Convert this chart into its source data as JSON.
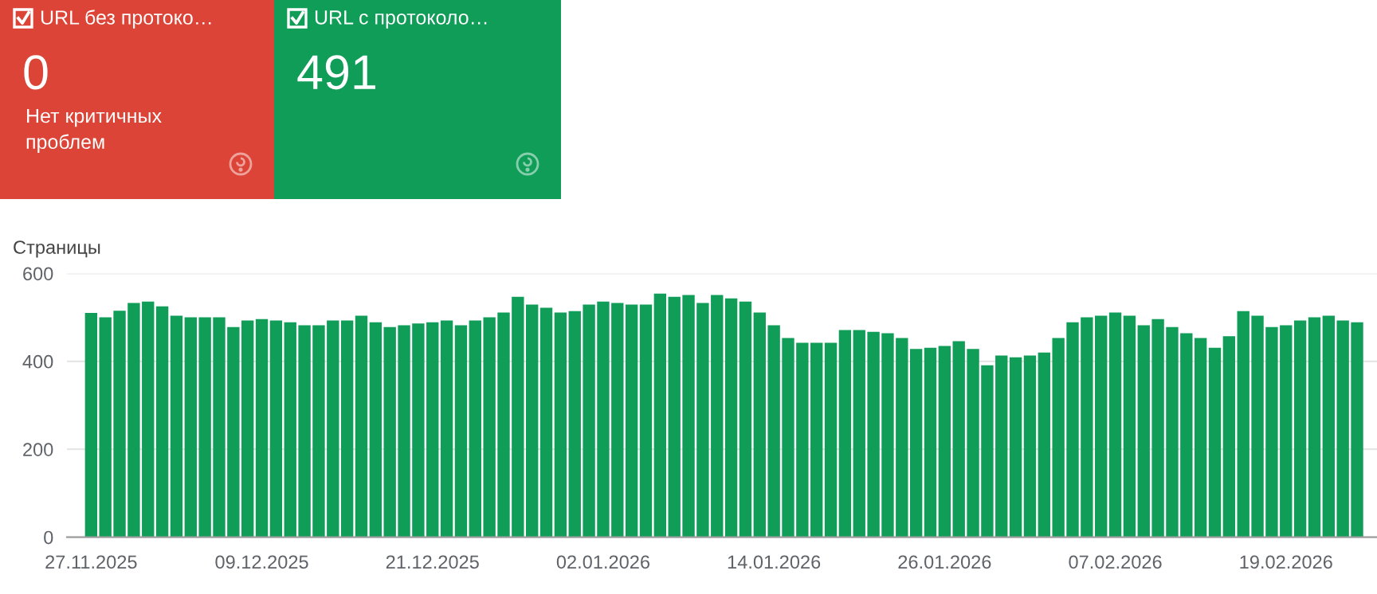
{
  "chart_data": [
    {
      "type": "other",
      "title": "URL без протоко…",
      "color": "#db4437",
      "annotations": [
        "0",
        "Нет критичных\nпроблем"
      ]
    },
    {
      "type": "other",
      "title": "URL с протоколо…",
      "color": "#0f9d58",
      "annotations": [
        "491"
      ]
    },
    {
      "type": "bar",
      "ylabel": "Страницы",
      "color": "#0f9d58",
      "ylim": [
        0,
        600
      ],
      "yticks": [
        0,
        200,
        400,
        600
      ],
      "grid": "y",
      "categories": [
        "27.11.2025",
        null,
        null,
        null,
        null,
        null,
        null,
        null,
        null,
        null,
        null,
        null,
        "09.12.2025",
        null,
        null,
        null,
        null,
        null,
        null,
        null,
        null,
        null,
        null,
        null,
        "21.12.2025",
        null,
        null,
        null,
        null,
        null,
        null,
        null,
        null,
        null,
        null,
        null,
        "02.01.2026",
        null,
        null,
        null,
        null,
        null,
        null,
        null,
        null,
        null,
        null,
        null,
        "14.01.2026",
        null,
        null,
        null,
        null,
        null,
        null,
        null,
        null,
        null,
        null,
        null,
        "26.01.2026",
        null,
        null,
        null,
        null,
        null,
        null,
        null,
        null,
        null,
        null,
        null,
        "07.02.2026",
        null,
        null,
        null,
        null,
        null,
        null,
        null,
        null,
        null,
        null,
        null,
        "19.02.2026",
        null,
        null,
        null,
        null,
        null
      ],
      "values": [
        510,
        500,
        515,
        533,
        536,
        525,
        504,
        500,
        500,
        500,
        478,
        493,
        496,
        493,
        489,
        482,
        482,
        493,
        493,
        504,
        489,
        478,
        482,
        486,
        489,
        493,
        482,
        493,
        500,
        511,
        547,
        529,
        522,
        511,
        514,
        529,
        536,
        533,
        529,
        529,
        554,
        547,
        551,
        533,
        551,
        543,
        536,
        511,
        482,
        453,
        442,
        442,
        442,
        471,
        471,
        467,
        464,
        453,
        428,
        431,
        435,
        446,
        428,
        391,
        413,
        409,
        413,
        420,
        453,
        489,
        500,
        504,
        511,
        504,
        482,
        496,
        478,
        464,
        453,
        431,
        457,
        514,
        504,
        478,
        482,
        493,
        500,
        504,
        493,
        489
      ]
    }
  ]
}
